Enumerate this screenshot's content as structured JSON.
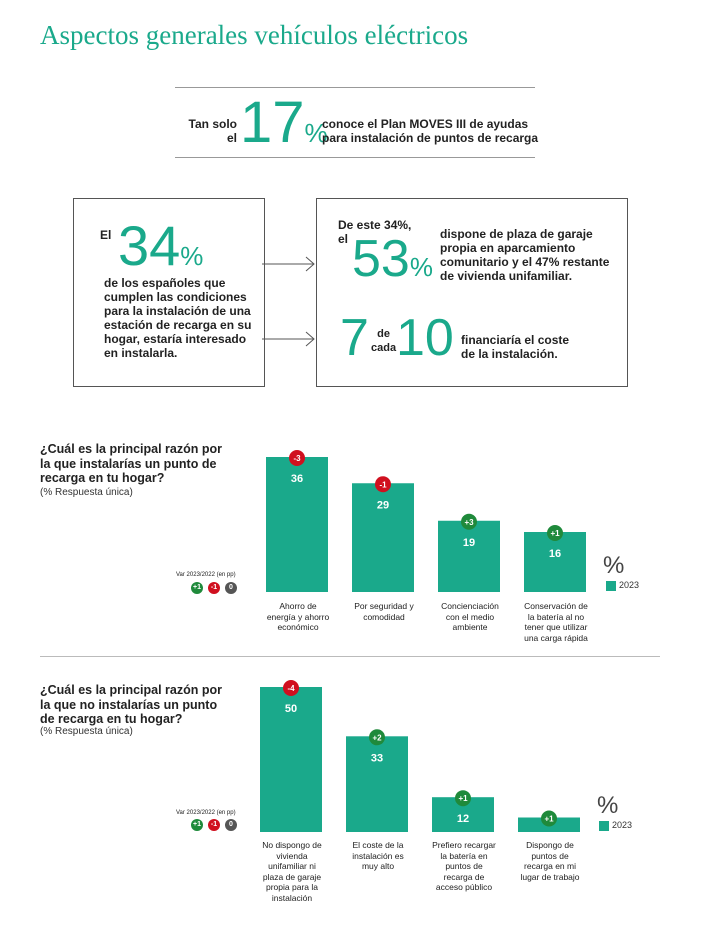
{
  "page_title": "Aspectos generales vehículos eléctricos",
  "colors": {
    "accent": "#1aa98b",
    "negative": "#d0101f",
    "positive": "#1f8a3b",
    "neutral": "#555555"
  },
  "moves": {
    "prefix_line1": "Tan solo",
    "prefix_line2": "el",
    "number": "17",
    "sign": "%",
    "text_line1": "conoce el Plan MOVES III de ayudas",
    "text_line2": "para instalación de puntos de recarga"
  },
  "box_left": {
    "prefix": "El",
    "number": "34",
    "sign": "%",
    "text": [
      "de los españoles que",
      "cumplen las condiciones",
      "para la instalación de una",
      "estación de recarga en su",
      "hogar, estaría interesado",
      "en instalarla."
    ]
  },
  "box_right": {
    "intro_line1": "De este 34%,",
    "intro_line2": "el",
    "number": "53",
    "sign": "%",
    "text": [
      "dispone de plaza de garaje",
      "propia en aparcamiento",
      "comunitario y el 47% restante",
      "de vivienda unifamiliar."
    ],
    "num_a": "7",
    "of_line1": "de",
    "of_line2": "cada",
    "num_b": "10",
    "text2": [
      "financiaría el coste",
      "de la instalación."
    ]
  },
  "var_legend": {
    "title": "Var 2023/2022 (en pp)",
    "items": [
      "+1",
      "-1",
      "0"
    ]
  },
  "chart_data": [
    {
      "type": "bar",
      "title": "¿Cuál es la principal razón por la que instalarías un punto de recarga en tu hogar?",
      "title_lines": [
        "¿Cuál es la principal razón por",
        "la que instalarías un punto de",
        "recarga en tu hogar?"
      ],
      "subtitle": "(% Respuesta única)",
      "unit": "%",
      "legend": [
        "2023"
      ],
      "categories": [
        "Ahorro de energía y ahorro económico",
        "Por seguridad y comodidad",
        "Concienciación con el medio ambiente",
        "Conservación de la batería al no tener que utilizar una carga rápida"
      ],
      "category_lines": [
        [
          "Ahorro de",
          "energía y ahorro",
          "económico"
        ],
        [
          "Por seguridad y",
          "comodidad"
        ],
        [
          "Concienciación",
          "con el medio",
          "ambiente"
        ],
        [
          "Conservación de",
          "la batería al no",
          "tener que utilizar",
          "una carga rápida"
        ]
      ],
      "series": [
        {
          "name": "2023",
          "values": [
            36,
            29,
            19,
            16
          ]
        }
      ],
      "variation": [
        "-3",
        "-1",
        "+3",
        "+1"
      ],
      "ylim": [
        0,
        40
      ]
    },
    {
      "type": "bar",
      "title": "¿Cuál es la principal razón por la que no instalarías un punto de recarga en tu hogar?",
      "title_lines": [
        "¿Cuál es la principal razón por",
        "la que no instalarías un punto",
        "de recarga en tu hogar?"
      ],
      "subtitle": "(% Respuesta única)",
      "unit": "%",
      "legend": [
        "2023"
      ],
      "categories": [
        "No dispongo de vivienda unifamiliar ni plaza de garaje propia para la instalación",
        "El coste de la instalación es muy alto",
        "Prefiero recargar la batería en puntos de recarga de acceso público",
        "Dispongo de puntos de recarga en mi lugar de trabajo"
      ],
      "category_lines": [
        [
          "No dispongo de",
          "vivienda",
          "unifamiliar ni",
          "plaza de garaje",
          "propia para la",
          "instalación"
        ],
        [
          "El coste de la",
          "instalación es",
          "muy alto"
        ],
        [
          "Prefiero recargar",
          "la batería en",
          "puntos de",
          "recarga de",
          "acceso público"
        ],
        [
          "Dispongo de",
          "puntos de",
          "recarga en mi",
          "lugar de trabajo"
        ]
      ],
      "series": [
        {
          "name": "2023",
          "values": [
            50,
            33,
            12,
            5
          ]
        }
      ],
      "variation": [
        "-4",
        "+2",
        "+1",
        "+1"
      ],
      "ylim": [
        0,
        55
      ]
    }
  ]
}
